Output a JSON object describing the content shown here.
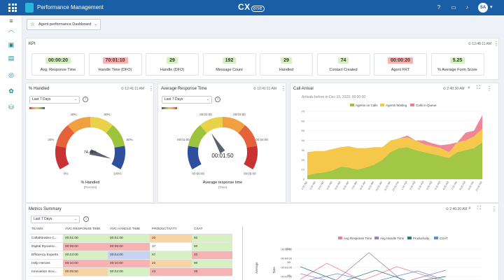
{
  "app": {
    "title": "Performance Management",
    "brand": "CX",
    "brand_suffix": "one",
    "user_initials": "SA"
  },
  "dashboard_selector": {
    "label": "Agent performance Dashboard"
  },
  "kpi_panel": {
    "title": "KPI",
    "timestamp": "12:48:11 AM",
    "cards": [
      {
        "value": "00:00:20",
        "label": "Avg. Response Time",
        "color": "#d7f0c2"
      },
      {
        "value": "70:01:10",
        "label": "Handle Time (DFO)",
        "color": "#f6b3b1"
      },
      {
        "value": "29",
        "label": "Handle (DFO)",
        "color": "#d7f0c2"
      },
      {
        "value": "192",
        "label": "Message Count",
        "color": "#d7f0c2"
      },
      {
        "value": "29",
        "label": "Handled",
        "color": "#d7f0c2"
      },
      {
        "value": "74",
        "label": "Contact Created",
        "color": "#d7f0c2"
      },
      {
        "value": "00:00:20",
        "label": "Agent FRT",
        "color": "#f6b3b1"
      },
      {
        "value": "5.25",
        "label": "% Average Form Score",
        "color": "#d7f0c2"
      }
    ]
  },
  "handled_panel": {
    "title": "% Handled",
    "timestamp": "12:41:11 AM",
    "range": "Last 7 Days",
    "gauge": {
      "value": 74.45,
      "value_text": "74.45%",
      "min_label": "0%",
      "max_label": "100%",
      "ticks": [
        "20%",
        "40%",
        "60%",
        "80%"
      ],
      "label": "% Handled",
      "sublabel": "(Percent)"
    }
  },
  "art_panel": {
    "title": "Average Response Time",
    "timestamp": "12:41:11 AM",
    "range": "Last 7 Days",
    "gauge": {
      "value": 0.37,
      "value_text": "00:01:50",
      "min_label": "00:00:00",
      "max_label": "00:05:00",
      "ticks": [
        "00:01:00",
        "00:02:00",
        "00:03:00",
        "00:04:00"
      ],
      "label": "Average response time",
      "sublabel": "(Time)"
    }
  },
  "call_arrival_panel": {
    "title": "Call Arrival",
    "timestamp": "2:48:30 AM",
    "subtitle": "Arrivals before to Dec 15, 2023, 00:00:00",
    "legend": [
      {
        "name": "Agents on Calls",
        "color": "#9cc43a"
      },
      {
        "name": "Agents Waiting",
        "color": "#f4c542"
      },
      {
        "name": "Calls in Queue",
        "color": "#f07f8e"
      }
    ],
    "y_ticks": [
      "0",
      "10",
      "20",
      "30",
      "40",
      "50",
      "60",
      "70"
    ],
    "x_ticks": [
      "1:00 AM",
      "2:00 AM",
      "3:00 AM",
      "4:00 AM",
      "5:00 AM",
      "6:00 AM",
      "7:00 AM",
      "8:00 AM",
      "9:00 AM",
      "10:00 AM",
      "11:00 AM",
      "12:00 PM",
      "1:00 PM",
      "2:00 PM",
      "3:00 PM",
      "4:00 PM",
      "5:00 PM",
      "6:00 PM",
      "7:00 PM",
      "8:00 PM",
      "9:00 PM",
      "10:00 PM"
    ]
  },
  "chart_data": {
    "type": "area",
    "x": [
      "1:00 AM",
      "2:00 AM",
      "3:00 AM",
      "4:00 AM",
      "5:00 AM",
      "6:00 AM",
      "7:00 AM",
      "8:00 AM",
      "9:00 AM",
      "10:00 AM",
      "11:00 AM",
      "12:00 PM",
      "1:00 PM",
      "2:00 PM",
      "3:00 PM",
      "4:00 PM",
      "5:00 PM",
      "6:00 PM",
      "7:00 PM",
      "8:00 PM",
      "9:00 PM",
      "10:00 PM"
    ],
    "ylim": [
      0,
      70
    ],
    "stacked": true,
    "series": [
      {
        "name": "Agents on Calls",
        "values": [
          4,
          6,
          7,
          9,
          13,
          12,
          10,
          12,
          15,
          20,
          28,
          32,
          33,
          30,
          28,
          26,
          24,
          22,
          28,
          30,
          32,
          38
        ]
      },
      {
        "name": "Agents Waiting",
        "values": [
          24,
          23,
          22,
          22,
          20,
          22,
          22,
          20,
          18,
          13,
          12,
          10,
          10,
          10,
          8,
          8,
          8,
          6,
          10,
          10,
          12,
          14
        ]
      },
      {
        "name": "Calls in Queue",
        "values": [
          0,
          0,
          0,
          0,
          0,
          0,
          0,
          0,
          0,
          0,
          0,
          0,
          2,
          0,
          4,
          3,
          3,
          8,
          0,
          8,
          6,
          14
        ]
      }
    ]
  },
  "metrics_panel": {
    "title": "Metrics Summary",
    "timestamp": "2:46:30 AM",
    "range": "Last 7 Days",
    "columns": [
      "TEAMS",
      "AVG RESPONSE TIME",
      "AVG HANDLE TIME",
      "PRODUCTIVITY",
      "CSAT"
    ],
    "rows": [
      {
        "team": "Collaborative C...",
        "art": "00:01:00",
        "aht": "00:01:00",
        "prod": "20",
        "csat": "80"
      },
      {
        "team": "Digital Dynamo...",
        "art": "00:06:00",
        "aht": "00:06:00",
        "prod": "17",
        "csat": "60"
      },
      {
        "team": "Efficiency Experts",
        "art": "00:03:00",
        "aht": "00:04:00",
        "prod": "67",
        "csat": "40"
      },
      {
        "team": "Help Heroes",
        "art": "00:10:00",
        "aht": "00:10:00",
        "prod": "22",
        "csat": "90"
      },
      {
        "team": "Innovation Incu...",
        "art": "00:05:50",
        "aht": "00:02:00",
        "prod": "43",
        "csat": "35"
      }
    ],
    "mini_legend": [
      {
        "name": "Avg Response Time",
        "color": "#f07f8e"
      },
      {
        "name": "Avg Handle Time",
        "color": "#a47ec3"
      },
      {
        "name": "Productivity",
        "color": "#2e7d6f"
      },
      {
        "name": "CSAT",
        "color": "#5b8fd6"
      }
    ],
    "mini_y_ticks": [
      "00:05:00",
      "00:04:00",
      "00:03:00",
      "00:02:00"
    ],
    "mini_y2_ticks": [
      "100",
      "80",
      "60"
    ],
    "mini_axis_left": "Average",
    "mini_axis_left2": "Time"
  }
}
